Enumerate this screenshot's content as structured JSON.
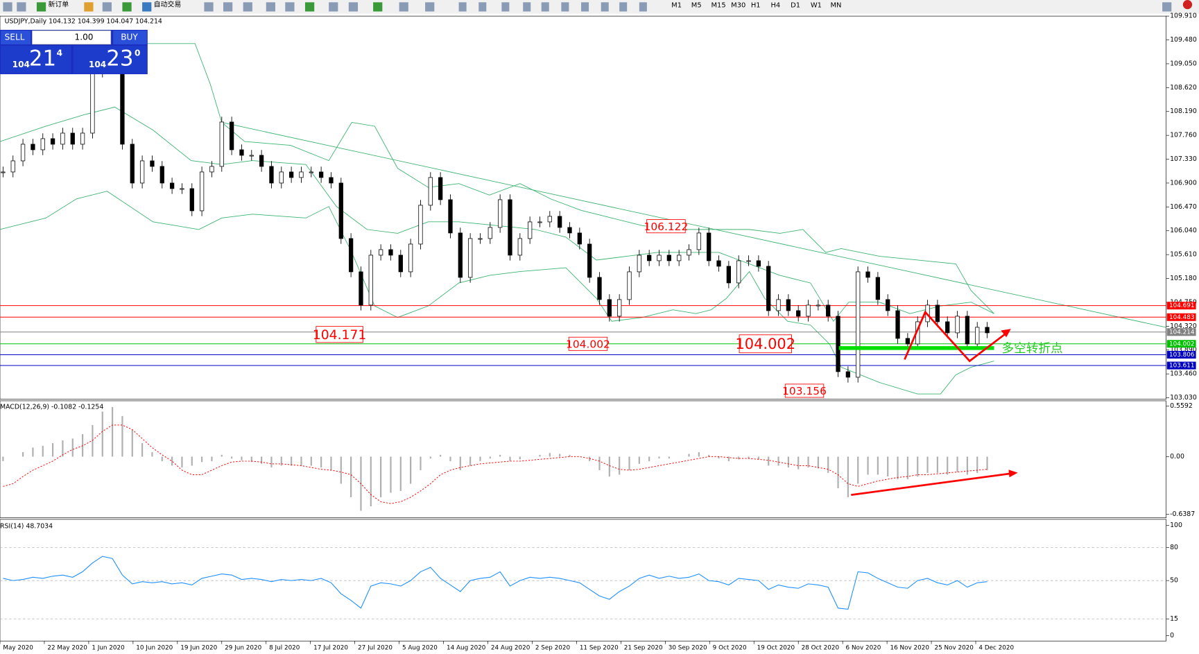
{
  "toolbar": {
    "new_order": "新订单",
    "auto_trade": "自动交易",
    "timeframes": [
      "M1",
      "M5",
      "M15",
      "M30",
      "H1",
      "H4",
      "D1",
      "W1",
      "MN"
    ]
  },
  "trade_panel": {
    "sell": "SELL",
    "buy": "BUY",
    "lot": "1.00",
    "sell_price_big": "104",
    "sell_price_mid": "21",
    "sell_price_sup": "4",
    "buy_price_big": "104",
    "buy_price_mid": "23",
    "buy_price_sup": "0"
  },
  "date_axis": [
    "May 2020",
    "22 May 2020",
    "1 Jun 2020",
    "10 Jun 2020",
    "19 Jun 2020",
    "29 Jun 2020",
    "8 Jul 2020",
    "17 Jul 2020",
    "27 Jul 2020",
    "5 Aug 2020",
    "14 Aug 2020",
    "24 Aug 2020",
    "2 Sep 2020",
    "11 Sep 2020",
    "21 Sep 2020",
    "30 Sep 2020",
    "9 Oct 2020",
    "19 Oct 2020",
    "28 Oct 2020",
    "6 Nov 2020",
    "16 Nov 2020",
    "25 Nov 2020",
    "4 Dec 2020"
  ],
  "chart_data": [
    {
      "type": "candlestick",
      "title": "USDJPY,Daily  104.132 104.399 104.047 104.214",
      "note": "多空转折点",
      "values": [
        107.1,
        107.3,
        107.6,
        107.5,
        107.7,
        107.6,
        107.8,
        107.6,
        107.8,
        108.9,
        109.5,
        109.3,
        107.6,
        106.9,
        107.3,
        107.2,
        106.9,
        106.8,
        106.8,
        106.4,
        107.1,
        107.2,
        108.0,
        107.5,
        107.4,
        107.4,
        107.2,
        106.9,
        107.1,
        107.0,
        107.1,
        107.1,
        107.0,
        106.9,
        105.9,
        105.3,
        104.7,
        105.6,
        105.7,
        105.6,
        105.3,
        105.8,
        106.5,
        107.0,
        106.6,
        106.0,
        105.2,
        105.9,
        105.9,
        106.1,
        106.6,
        105.6,
        105.9,
        106.2,
        106.2,
        106.3,
        106.1,
        106.0,
        105.8,
        105.2,
        104.8,
        104.5,
        104.8,
        105.3,
        105.6,
        105.5,
        105.6,
        105.5,
        105.6,
        105.7,
        106.0,
        105.5,
        105.4,
        105.1,
        105.5,
        105.5,
        105.4,
        104.6,
        104.8,
        104.6,
        104.5,
        104.7,
        104.7,
        104.5,
        103.5,
        103.4,
        105.3,
        105.2,
        104.8,
        104.6,
        104.1,
        104.0,
        104.4,
        104.7,
        104.4,
        104.2,
        104.5,
        104.0,
        104.3,
        104.2
      ],
      "ylim": [
        103.03,
        109.91
      ],
      "yticks": [
        {
          "value": 103.03,
          "label": "103.030"
        },
        {
          "value": 103.46,
          "label": "103.460"
        },
        {
          "value": 103.89,
          "label": "103.890"
        },
        {
          "value": 104.32,
          "label": "104.320"
        },
        {
          "value": 104.75,
          "label": "104.750"
        },
        {
          "value": 105.18,
          "label": "105.180"
        },
        {
          "value": 105.61,
          "label": "105.610"
        },
        {
          "value": 106.04,
          "label": "106.040"
        },
        {
          "value": 106.47,
          "label": "106.470"
        },
        {
          "value": 106.9,
          "label": "106.900"
        },
        {
          "value": 107.33,
          "label": "107.330"
        },
        {
          "value": 107.76,
          "label": "107.760"
        },
        {
          "value": 108.19,
          "label": "108.190"
        },
        {
          "value": 108.62,
          "label": "108.620"
        },
        {
          "value": 109.05,
          "label": "109.050"
        },
        {
          "value": 109.48,
          "label": "109.480"
        },
        {
          "value": 109.91,
          "label": "109.910"
        }
      ],
      "levels": [
        {
          "value": 104.691,
          "label": "104.691",
          "color": "#ff0000"
        },
        {
          "value": 104.483,
          "label": "104.483",
          "color": "#ff0000"
        },
        {
          "value": 104.214,
          "label": "104.214",
          "color": "#808080"
        },
        {
          "value": 104.002,
          "label": "104.002",
          "color": "#00c000"
        },
        {
          "value": 103.806,
          "label": "103.806",
          "color": "#0000c0"
        },
        {
          "value": 103.611,
          "label": "103.611",
          "color": "#0000c0"
        }
      ],
      "annotations": [
        {
          "value": 104.171,
          "label": "104.171"
        },
        {
          "value": 104.002,
          "label": "104.002"
        },
        {
          "value": 104.002,
          "label": "104.002"
        },
        {
          "value": 103.156,
          "label": "103.156"
        },
        {
          "value": 106.122,
          "label": "106.122"
        }
      ]
    },
    {
      "type": "macd",
      "title": "MACD(12,26,9) -0.1082 -0.1254",
      "series": [
        {
          "color": "#b0b0b0",
          "values": [
            -0.05,
            0,
            0.05,
            0.1,
            0.12,
            0.15,
            0.18,
            0.2,
            0.25,
            0.35,
            0.5,
            0.55,
            0.45,
            0.3,
            0.15,
            0.05,
            -0.05,
            -0.1,
            -0.12,
            -0.1,
            -0.06,
            -0.05,
            0.02,
            -0.02,
            -0.04,
            -0.06,
            -0.08,
            -0.12,
            -0.1,
            -0.1,
            -0.1,
            -0.1,
            -0.12,
            -0.15,
            -0.3,
            -0.45,
            -0.6,
            -0.55,
            -0.45,
            -0.4,
            -0.38,
            -0.3,
            -0.15,
            -0.02,
            0.02,
            -0.05,
            -0.15,
            -0.1,
            -0.05,
            -0.02,
            0.02,
            -0.05,
            -0.03,
            0,
            0.02,
            0.04,
            0.03,
            0.02,
            0,
            -0.05,
            -0.15,
            -0.22,
            -0.2,
            -0.15,
            -0.08,
            -0.05,
            -0.02,
            -0.02,
            0,
            0.03,
            0.05,
            0.02,
            -0.02,
            -0.05,
            -0.03,
            -0.02,
            -0.03,
            -0.1,
            -0.1,
            -0.12,
            -0.14,
            -0.12,
            -0.13,
            -0.18,
            -0.35,
            -0.45,
            -0.3,
            -0.2,
            -0.2,
            -0.22,
            -0.25,
            -0.25,
            -0.22,
            -0.18,
            -0.18,
            -0.2,
            -0.17,
            -0.2,
            -0.18,
            -0.15
          ]
        },
        {
          "color": "#ff0000",
          "values": [
            -0.33,
            -0.3,
            -0.22,
            -0.15,
            -0.1,
            -0.05,
            0.02,
            0.08,
            0.12,
            0.18,
            0.28,
            0.35,
            0.35,
            0.3,
            0.2,
            0.1,
            0.02,
            -0.05,
            -0.15,
            -0.2,
            -0.2,
            -0.15,
            -0.1,
            -0.06,
            -0.05,
            -0.05,
            -0.06,
            -0.08,
            -0.08,
            -0.09,
            -0.1,
            -0.12,
            -0.14,
            -0.15,
            -0.17,
            -0.2,
            -0.3,
            -0.42,
            -0.5,
            -0.52,
            -0.5,
            -0.45,
            -0.38,
            -0.3,
            -0.2,
            -0.15,
            -0.12,
            -0.1,
            -0.08,
            -0.07,
            -0.06,
            -0.05,
            -0.05,
            -0.04,
            -0.03,
            -0.02,
            -0.01,
            0,
            0,
            -0.02,
            -0.05,
            -0.1,
            -0.14,
            -0.15,
            -0.14,
            -0.12,
            -0.1,
            -0.08,
            -0.06,
            -0.04,
            -0.02,
            0,
            0,
            -0.01,
            -0.02,
            -0.02,
            -0.03,
            -0.04,
            -0.06,
            -0.08,
            -0.1,
            -0.1,
            -0.12,
            -0.14,
            -0.2,
            -0.3,
            -0.33,
            -0.3,
            -0.27,
            -0.25,
            -0.23,
            -0.22,
            -0.2,
            -0.2,
            -0.19,
            -0.18,
            -0.17,
            -0.16,
            -0.15,
            -0.14
          ]
        }
      ],
      "ylim": [
        -0.678,
        0.61
      ],
      "yticks": [
        0.5592,
        {
          "value": 0,
          "label": "0.00"
        },
        -0.6387
      ]
    },
    {
      "type": "line",
      "title": "RSI(14) 48.7034",
      "color": "#1e90ff",
      "values": [
        52,
        50,
        51,
        53,
        52,
        54,
        55,
        53,
        58,
        66,
        72,
        70,
        55,
        47,
        49,
        48,
        49,
        47,
        48,
        46,
        52,
        54,
        56,
        55,
        51,
        52,
        51,
        49,
        51,
        50,
        51,
        50,
        52,
        48,
        38,
        32,
        25,
        45,
        48,
        47,
        45,
        50,
        58,
        62,
        52,
        46,
        40,
        50,
        52,
        53,
        58,
        45,
        50,
        53,
        52,
        53,
        52,
        50,
        48,
        42,
        36,
        33,
        40,
        45,
        52,
        55,
        52,
        54,
        52,
        53,
        56,
        50,
        49,
        46,
        52,
        51,
        50,
        42,
        46,
        44,
        43,
        47,
        46,
        44,
        25,
        24,
        58,
        57,
        52,
        48,
        44,
        43,
        50,
        52,
        48,
        46,
        50,
        44,
        48,
        49
      ],
      "ylim": [
        0,
        100
      ],
      "yticks": [
        0,
        15,
        50,
        80,
        100
      ],
      "grid": "dashed"
    }
  ]
}
